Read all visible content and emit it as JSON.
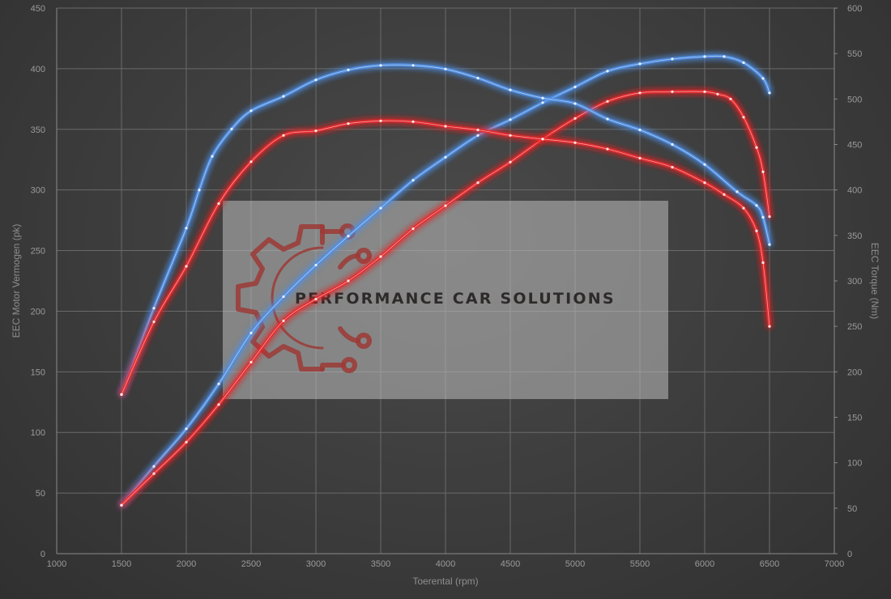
{
  "chart_data": {
    "type": "line",
    "xlabel": "Toerental (rpm)",
    "ylabel_left": "EEC Motor Vermogen (pk)",
    "ylabel_right": "EEC Torque (Nm)",
    "xlim": [
      1000,
      7000
    ],
    "ylim_left": [
      0,
      450
    ],
    "ylim_right": [
      0,
      600
    ],
    "x_ticks": [
      "1000",
      "1500",
      "2000",
      "2500",
      "3000",
      "3500",
      "4000",
      "4500",
      "5000",
      "5500",
      "6000",
      "6500",
      "7000"
    ],
    "y_left_ticks": [
      "0",
      "50",
      "100",
      "150",
      "200",
      "250",
      "300",
      "350",
      "400",
      "450"
    ],
    "y_right_ticks": [
      "0",
      "50",
      "100",
      "150",
      "200",
      "250",
      "300",
      "350",
      "400",
      "450",
      "500",
      "550",
      "600"
    ],
    "grid": true,
    "series": [
      {
        "role": "power-tuned",
        "axis": "left",
        "color": "#4f8fe6",
        "points": [
          [
            1500,
            40
          ],
          [
            1750,
            72
          ],
          [
            2000,
            103
          ],
          [
            2250,
            140
          ],
          [
            2500,
            182
          ],
          [
            2750,
            212
          ],
          [
            3000,
            238
          ],
          [
            3250,
            262
          ],
          [
            3500,
            285
          ],
          [
            3750,
            308
          ],
          [
            4000,
            327
          ],
          [
            4250,
            345
          ],
          [
            4500,
            358
          ],
          [
            4750,
            372
          ],
          [
            5000,
            385
          ],
          [
            5250,
            398
          ],
          [
            5500,
            404
          ],
          [
            5750,
            408
          ],
          [
            6000,
            410
          ],
          [
            6150,
            410
          ],
          [
            6300,
            405
          ],
          [
            6450,
            392
          ],
          [
            6500,
            380
          ]
        ]
      },
      {
        "role": "power-stock",
        "axis": "left",
        "color": "#e8282a",
        "points": [
          [
            1500,
            40
          ],
          [
            1750,
            66
          ],
          [
            2000,
            92
          ],
          [
            2250,
            123
          ],
          [
            2500,
            158
          ],
          [
            2750,
            192
          ],
          [
            3000,
            210
          ],
          [
            3250,
            225
          ],
          [
            3500,
            245
          ],
          [
            3750,
            268
          ],
          [
            4000,
            287
          ],
          [
            4250,
            306
          ],
          [
            4500,
            323
          ],
          [
            4750,
            342
          ],
          [
            5000,
            359
          ],
          [
            5250,
            373
          ],
          [
            5500,
            380
          ],
          [
            5750,
            381
          ],
          [
            6000,
            381
          ],
          [
            6100,
            379
          ],
          [
            6200,
            375
          ],
          [
            6300,
            360
          ],
          [
            6400,
            335
          ],
          [
            6450,
            315
          ],
          [
            6500,
            278
          ]
        ]
      },
      {
        "role": "torque-tuned",
        "axis": "right",
        "color": "#4f8fe6",
        "points": [
          [
            1500,
            175
          ],
          [
            1750,
            270
          ],
          [
            2000,
            358
          ],
          [
            2100,
            400
          ],
          [
            2200,
            437
          ],
          [
            2350,
            467
          ],
          [
            2500,
            487
          ],
          [
            2750,
            503
          ],
          [
            3000,
            521
          ],
          [
            3250,
            532
          ],
          [
            3500,
            537
          ],
          [
            3750,
            537
          ],
          [
            4000,
            533
          ],
          [
            4250,
            523
          ],
          [
            4500,
            510
          ],
          [
            4750,
            501
          ],
          [
            5000,
            495
          ],
          [
            5250,
            478
          ],
          [
            5500,
            466
          ],
          [
            5750,
            450
          ],
          [
            6000,
            428
          ],
          [
            6250,
            398
          ],
          [
            6400,
            383
          ],
          [
            6450,
            370
          ],
          [
            6500,
            340
          ]
        ]
      },
      {
        "role": "torque-stock",
        "axis": "right",
        "color": "#e8282a",
        "points": [
          [
            1500,
            175
          ],
          [
            1750,
            255
          ],
          [
            2000,
            316
          ],
          [
            2250,
            385
          ],
          [
            2500,
            431
          ],
          [
            2750,
            460
          ],
          [
            3000,
            465
          ],
          [
            3250,
            473
          ],
          [
            3500,
            476
          ],
          [
            3750,
            475
          ],
          [
            4000,
            470
          ],
          [
            4250,
            466
          ],
          [
            4500,
            460
          ],
          [
            4750,
            456
          ],
          [
            5000,
            452
          ],
          [
            5250,
            445
          ],
          [
            5500,
            435
          ],
          [
            5750,
            425
          ],
          [
            6000,
            408
          ],
          [
            6150,
            395
          ],
          [
            6300,
            380
          ],
          [
            6400,
            355
          ],
          [
            6450,
            320
          ],
          [
            6500,
            250
          ]
        ]
      }
    ]
  },
  "watermark": {
    "text": "PERFORMANCE CAR SOLUTIONS",
    "icon": "gear-circuit-icon"
  }
}
